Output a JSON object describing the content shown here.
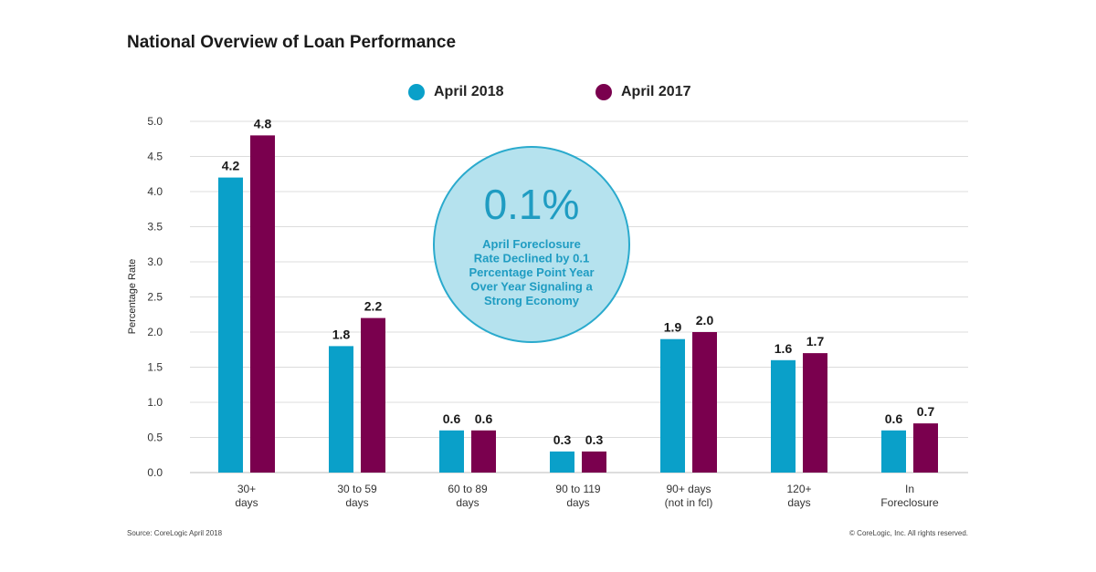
{
  "chart_data": {
    "type": "bar",
    "title": "National Overview of Loan Performance",
    "ylabel": "Percentage Rate",
    "xlabel": "",
    "ylim": [
      0,
      5
    ],
    "yticks": [
      "0.0",
      "0.5",
      "1.0",
      "1.5",
      "2.0",
      "2.5",
      "3.0",
      "3.5",
      "4.0",
      "4.5",
      "5.0"
    ],
    "grid": true,
    "legend_position": "top-center",
    "categories": [
      [
        "30+",
        "days"
      ],
      [
        "30 to 59",
        "days"
      ],
      [
        "60 to 89",
        "days"
      ],
      [
        "90 to 119",
        "days"
      ],
      [
        "90+ days",
        "(not in fcl)"
      ],
      [
        "120+",
        "days"
      ],
      [
        "In",
        "Foreclosure"
      ]
    ],
    "series": [
      {
        "name": "April 2018",
        "color": "#0aa0c9",
        "values": [
          4.2,
          1.8,
          0.6,
          0.3,
          1.9,
          1.6,
          0.6
        ]
      },
      {
        "name": "April 2017",
        "color": "#7a004e",
        "values": [
          4.8,
          2.2,
          0.6,
          0.3,
          2.0,
          1.7,
          0.7
        ]
      }
    ],
    "annotation": {
      "headline": "0.1%",
      "text": [
        "April Foreclosure",
        "Rate Declined by 0.1",
        "Percentage Point Year",
        "Over Year Signaling a",
        "Strong Economy"
      ],
      "fill": "#b5e2ee",
      "stroke": "#2aaacd",
      "text_color": "#1f9cc2"
    }
  },
  "footer": {
    "source": "Source: CoreLogic April 2018",
    "copyright": "© CoreLogic, Inc. All rights reserved."
  }
}
